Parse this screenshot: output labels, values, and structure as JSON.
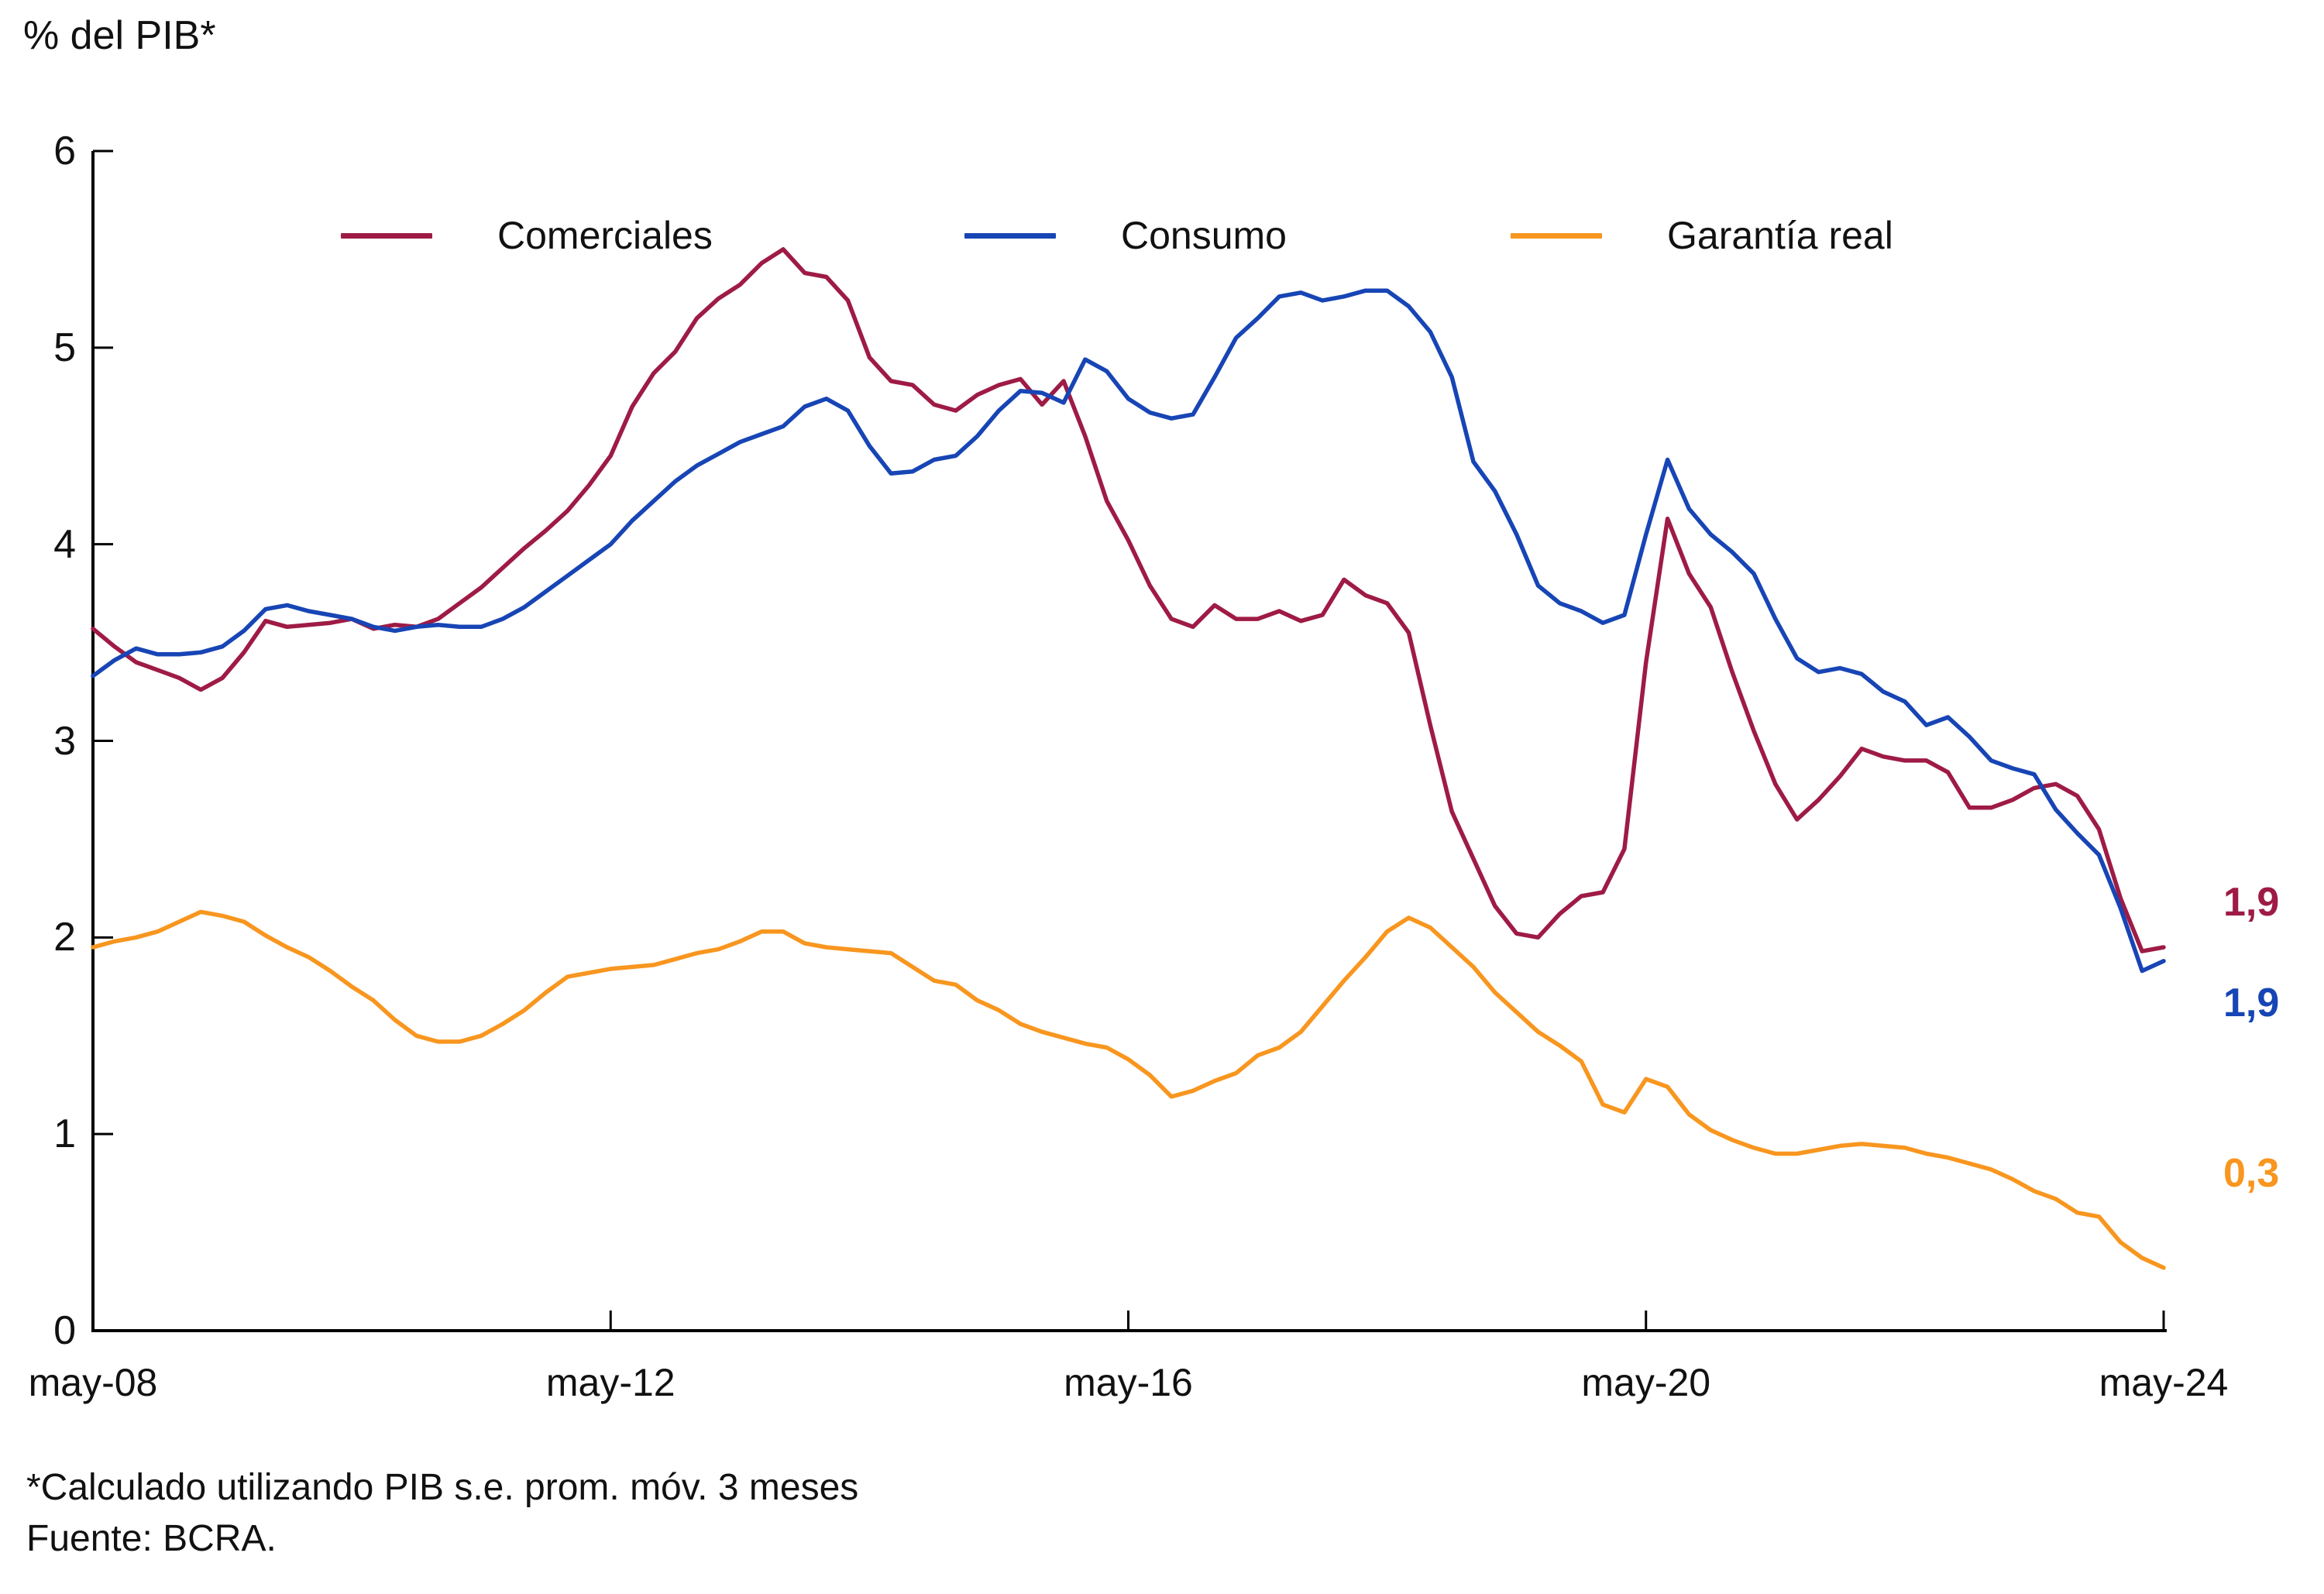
{
  "page": {
    "title": "% del PIB*",
    "footnote1": "*Calculado utilizando PIB s.e. prom. móv. 3 meses",
    "footnote2": "Fuente: BCRA."
  },
  "chart_data": {
    "type": "line",
    "title": "% del PIB*",
    "xlabel": "",
    "ylabel": "% del PIB*",
    "ylim": [
      0,
      6
    ],
    "y_ticks": [
      0,
      1,
      2,
      3,
      4,
      5,
      6
    ],
    "x_range_months": [
      0,
      192
    ],
    "x_tick_months": [
      0,
      48,
      96,
      144,
      192
    ],
    "x_tick_labels": [
      "may-08",
      "may-12",
      "may-16",
      "may-20",
      "may-24"
    ],
    "step_months": 2,
    "grid": false,
    "legend_position": "top",
    "series": [
      {
        "name": "Comerciales",
        "color": "#9E1B45",
        "end_label": "1,9",
        "values": [
          3.57,
          3.48,
          3.4,
          3.36,
          3.32,
          3.26,
          3.32,
          3.45,
          3.61,
          3.58,
          3.59,
          3.6,
          3.62,
          3.57,
          3.59,
          3.58,
          3.62,
          3.7,
          3.78,
          3.88,
          3.98,
          4.07,
          4.17,
          4.3,
          4.45,
          4.7,
          4.87,
          4.98,
          5.15,
          5.25,
          5.32,
          5.43,
          5.5,
          5.38,
          5.36,
          5.24,
          4.95,
          4.83,
          4.81,
          4.71,
          4.68,
          4.76,
          4.81,
          4.84,
          4.71,
          4.83,
          4.55,
          4.22,
          4.02,
          3.79,
          3.62,
          3.58,
          3.69,
          3.62,
          3.62,
          3.66,
          3.61,
          3.64,
          3.82,
          3.74,
          3.7,
          3.55,
          3.08,
          2.64,
          2.4,
          2.16,
          2.02,
          2.0,
          2.12,
          2.21,
          2.23,
          2.45,
          3.4,
          4.13,
          3.85,
          3.68,
          3.35,
          3.05,
          2.78,
          2.6,
          2.7,
          2.82,
          2.96,
          2.92,
          2.9,
          2.9,
          2.84,
          2.66,
          2.66,
          2.7,
          2.76,
          2.78,
          2.72,
          2.55,
          2.2,
          1.93,
          1.95
        ]
      },
      {
        "name": "Consumo",
        "color": "#1745B5",
        "end_label": "1,9",
        "values": [
          3.33,
          3.41,
          3.47,
          3.44,
          3.44,
          3.45,
          3.48,
          3.56,
          3.67,
          3.69,
          3.66,
          3.64,
          3.62,
          3.58,
          3.56,
          3.58,
          3.59,
          3.58,
          3.58,
          3.62,
          3.68,
          3.76,
          3.84,
          3.92,
          4.0,
          4.12,
          4.22,
          4.32,
          4.4,
          4.46,
          4.52,
          4.56,
          4.6,
          4.7,
          4.74,
          4.68,
          4.5,
          4.36,
          4.37,
          4.43,
          4.45,
          4.55,
          4.68,
          4.78,
          4.77,
          4.72,
          4.94,
          4.88,
          4.74,
          4.67,
          4.64,
          4.66,
          4.85,
          5.05,
          5.15,
          5.26,
          5.28,
          5.24,
          5.26,
          5.29,
          5.29,
          5.21,
          5.08,
          4.85,
          4.42,
          4.27,
          4.05,
          3.79,
          3.7,
          3.66,
          3.6,
          3.64,
          4.05,
          4.43,
          4.18,
          4.05,
          3.96,
          3.85,
          3.62,
          3.42,
          3.35,
          3.37,
          3.34,
          3.25,
          3.2,
          3.08,
          3.12,
          3.02,
          2.9,
          2.86,
          2.83,
          2.65,
          2.53,
          2.42,
          2.15,
          1.83,
          1.88
        ]
      },
      {
        "name": "Garantía real",
        "color": "#F8961F",
        "end_label": "0,3",
        "values": [
          1.95,
          1.98,
          2.0,
          2.03,
          2.08,
          2.13,
          2.11,
          2.08,
          2.01,
          1.95,
          1.9,
          1.83,
          1.75,
          1.68,
          1.58,
          1.5,
          1.47,
          1.47,
          1.5,
          1.56,
          1.63,
          1.72,
          1.8,
          1.82,
          1.84,
          1.85,
          1.86,
          1.89,
          1.92,
          1.94,
          1.98,
          2.03,
          2.03,
          1.97,
          1.95,
          1.94,
          1.93,
          1.92,
          1.85,
          1.78,
          1.76,
          1.68,
          1.63,
          1.56,
          1.52,
          1.49,
          1.46,
          1.44,
          1.38,
          1.3,
          1.19,
          1.22,
          1.27,
          1.31,
          1.4,
          1.44,
          1.52,
          1.65,
          1.78,
          1.9,
          2.03,
          2.1,
          2.05,
          1.95,
          1.85,
          1.72,
          1.62,
          1.52,
          1.45,
          1.37,
          1.15,
          1.11,
          1.28,
          1.24,
          1.1,
          1.02,
          0.97,
          0.93,
          0.9,
          0.9,
          0.92,
          0.94,
          0.95,
          0.94,
          0.93,
          0.9,
          0.88,
          0.85,
          0.82,
          0.77,
          0.71,
          0.67,
          0.6,
          0.58,
          0.45,
          0.37,
          0.32
        ]
      }
    ]
  }
}
